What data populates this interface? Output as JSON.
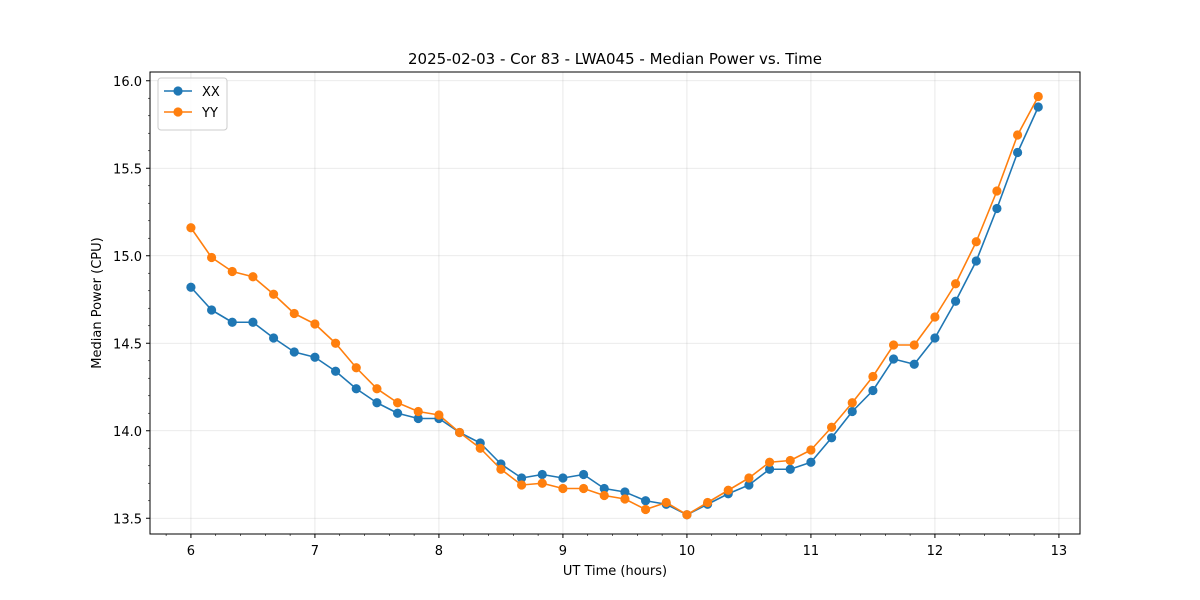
{
  "chart_data": {
    "type": "line",
    "title": "2025-02-03 - Cor 83 - LWA045 - Median Power vs. Time",
    "xlabel": "UT Time (hours)",
    "ylabel": "Median Power (CPU)",
    "xlim": [
      5.67,
      13.17
    ],
    "ylim": [
      13.41,
      16.05
    ],
    "xticks": [
      6,
      7,
      8,
      9,
      10,
      11,
      12,
      13
    ],
    "xtick_labels": [
      "6",
      "7",
      "8",
      "9",
      "10",
      "11",
      "12",
      "13"
    ],
    "yticks": [
      13.5,
      14.0,
      14.5,
      15.0,
      15.5,
      16.0
    ],
    "ytick_labels": [
      "13.5",
      "14.0",
      "14.5",
      "15.0",
      "15.5",
      "16.0"
    ],
    "grid": true,
    "legend_position": "top-left",
    "x": [
      6.0,
      6.1667,
      6.3333,
      6.5,
      6.6667,
      6.8333,
      7.0,
      7.1667,
      7.3333,
      7.5,
      7.6667,
      7.8333,
      8.0,
      8.1667,
      8.3333,
      8.5,
      8.6667,
      8.8333,
      9.0,
      9.1667,
      9.3333,
      9.5,
      9.6667,
      9.8333,
      10.0,
      10.1667,
      10.3333,
      10.5,
      10.6667,
      10.8333,
      11.0,
      11.1667,
      11.3333,
      11.5,
      11.6667,
      11.8333,
      12.0,
      12.1667,
      12.3333,
      12.5,
      12.6667,
      12.8333
    ],
    "series": [
      {
        "name": "XX",
        "color": "#1f77b4",
        "values": [
          14.82,
          14.69,
          14.62,
          14.62,
          14.53,
          14.45,
          14.42,
          14.34,
          14.24,
          14.16,
          14.1,
          14.07,
          14.07,
          13.99,
          13.93,
          13.81,
          13.73,
          13.75,
          13.73,
          13.75,
          13.67,
          13.65,
          13.6,
          13.58,
          13.52,
          13.58,
          13.64,
          13.69,
          13.78,
          13.78,
          13.82,
          13.96,
          14.11,
          14.23,
          14.41,
          14.38,
          14.53,
          14.74,
          14.97,
          15.27,
          15.59,
          15.85
        ]
      },
      {
        "name": "YY",
        "color": "#ff7f0e",
        "values": [
          15.16,
          14.99,
          14.91,
          14.88,
          14.78,
          14.67,
          14.61,
          14.5,
          14.36,
          14.24,
          14.16,
          14.11,
          14.09,
          13.99,
          13.9,
          13.78,
          13.69,
          13.7,
          13.67,
          13.67,
          13.63,
          13.61,
          13.55,
          13.59,
          13.52,
          13.59,
          13.66,
          13.73,
          13.82,
          13.83,
          13.89,
          14.02,
          14.16,
          14.31,
          14.49,
          14.49,
          14.65,
          14.84,
          15.08,
          15.37,
          15.69,
          15.91
        ]
      }
    ]
  }
}
